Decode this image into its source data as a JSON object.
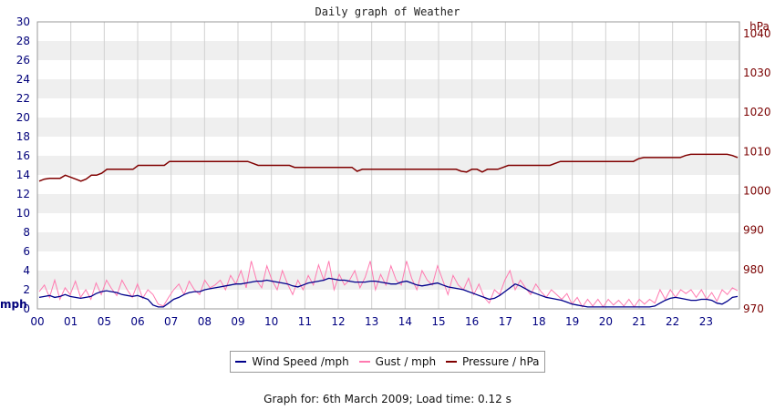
{
  "chart_data": {
    "type": "line",
    "title": "Daily graph of Weather",
    "left_axis": {
      "unit": "mph",
      "ylim": [
        0,
        30
      ],
      "ticks": [
        0,
        2,
        4,
        6,
        8,
        10,
        12,
        14,
        16,
        18,
        20,
        22,
        24,
        26,
        28,
        30
      ]
    },
    "right_axis": {
      "unit": "hPa",
      "ylim": [
        970,
        1043
      ],
      "ticks": [
        970,
        980,
        990,
        1000,
        1010,
        1020,
        1030,
        1040
      ]
    },
    "x_ticks": [
      "00",
      "01",
      "05",
      "06",
      "07",
      "08",
      "09",
      "10",
      "11",
      "12",
      "13",
      "14",
      "15",
      "16",
      "17",
      "18",
      "19",
      "20",
      "21",
      "22",
      "23"
    ],
    "grid": true,
    "legend_position": "bottom-center",
    "series": [
      {
        "name": "Wind Speed /mph",
        "color": "#00008b",
        "values": [
          1.2,
          1.3,
          1.4,
          1.2,
          1.3,
          1.5,
          1.3,
          1.2,
          1.1,
          1.2,
          1.3,
          1.6,
          1.8,
          1.9,
          1.8,
          1.7,
          1.5,
          1.4,
          1.3,
          1.4,
          1.2,
          1.0,
          0.4,
          0.2,
          0.2,
          0.6,
          1.0,
          1.2,
          1.5,
          1.7,
          1.8,
          1.8,
          2.0,
          2.1,
          2.2,
          2.3,
          2.4,
          2.5,
          2.6,
          2.6,
          2.7,
          2.8,
          2.9,
          2.9,
          3.0,
          2.9,
          2.8,
          2.7,
          2.6,
          2.4,
          2.3,
          2.5,
          2.7,
          2.8,
          2.9,
          3.0,
          3.2,
          3.1,
          3.0,
          3.0,
          2.9,
          2.8,
          2.8,
          2.8,
          2.9,
          2.9,
          2.8,
          2.7,
          2.6,
          2.6,
          2.8,
          2.9,
          2.7,
          2.5,
          2.4,
          2.5,
          2.6,
          2.7,
          2.5,
          2.3,
          2.2,
          2.1,
          2.0,
          1.8,
          1.6,
          1.4,
          1.2,
          1.0,
          1.1,
          1.4,
          1.8,
          2.2,
          2.6,
          2.4,
          2.1,
          1.8,
          1.6,
          1.4,
          1.2,
          1.1,
          1.0,
          0.9,
          0.7,
          0.5,
          0.4,
          0.3,
          0.2,
          0.2,
          0.2,
          0.2,
          0.2,
          0.2,
          0.2,
          0.2,
          0.2,
          0.2,
          0.2,
          0.2,
          0.2,
          0.3,
          0.6,
          0.9,
          1.1,
          1.2,
          1.1,
          1.0,
          0.9,
          0.9,
          1.0,
          1.0,
          0.9,
          0.6,
          0.5,
          0.8,
          1.2,
          1.3
        ]
      },
      {
        "name": "Gust / mph",
        "color": "#ff7ab0",
        "values": [
          1.8,
          2.5,
          1.2,
          3.0,
          1.0,
          2.2,
          1.5,
          2.9,
          1.2,
          2.0,
          1.0,
          2.7,
          1.5,
          3.0,
          2.1,
          1.4,
          3.0,
          2.0,
          1.2,
          2.6,
          1.1,
          2.0,
          1.5,
          0.5,
          0.3,
          1.2,
          2.0,
          2.6,
          1.5,
          2.9,
          2.0,
          1.5,
          3.0,
          2.2,
          2.5,
          3.0,
          2.0,
          3.5,
          2.6,
          4.0,
          2.2,
          5.0,
          3.0,
          2.2,
          4.5,
          3.0,
          2.0,
          4.0,
          2.6,
          1.5,
          3.0,
          2.0,
          3.5,
          2.5,
          4.6,
          3.0,
          5.0,
          2.0,
          3.6,
          2.5,
          3.0,
          4.0,
          2.2,
          3.3,
          5.0,
          2.0,
          3.6,
          2.5,
          4.5,
          3.0,
          2.5,
          5.0,
          3.2,
          2.0,
          4.0,
          3.0,
          2.5,
          4.5,
          3.0,
          1.5,
          3.5,
          2.5,
          2.0,
          3.2,
          1.5,
          2.6,
          1.2,
          0.6,
          2.0,
          1.5,
          3.0,
          4.0,
          2.0,
          3.0,
          2.2,
          1.5,
          2.6,
          1.8,
          1.2,
          2.0,
          1.5,
          1.0,
          1.6,
          0.5,
          1.2,
          0.2,
          1.0,
          0.3,
          1.0,
          0.2,
          1.0,
          0.4,
          0.9,
          0.3,
          1.0,
          0.2,
          1.0,
          0.5,
          1.0,
          0.6,
          2.0,
          1.0,
          2.0,
          1.2,
          2.0,
          1.6,
          2.0,
          1.2,
          2.0,
          1.0,
          1.7,
          0.8,
          2.0,
          1.5,
          2.2,
          1.9
        ]
      },
      {
        "name": "Pressure / hPa",
        "color": "#800000",
        "values": [
          1002.5,
          1003.0,
          1003.2,
          1003.2,
          1003.2,
          1004.0,
          1003.5,
          1003.0,
          1002.5,
          1003.0,
          1004.0,
          1004.0,
          1004.5,
          1005.5,
          1005.5,
          1005.5,
          1005.5,
          1005.5,
          1005.5,
          1006.5,
          1006.5,
          1006.5,
          1006.5,
          1006.5,
          1006.5,
          1007.5,
          1007.5,
          1007.5,
          1007.5,
          1007.5,
          1007.5,
          1007.5,
          1007.5,
          1007.5,
          1007.5,
          1007.5,
          1007.5,
          1007.5,
          1007.5,
          1007.5,
          1007.5,
          1007.0,
          1006.5,
          1006.5,
          1006.5,
          1006.5,
          1006.5,
          1006.5,
          1006.5,
          1006.0,
          1006.0,
          1006.0,
          1006.0,
          1006.0,
          1006.0,
          1006.0,
          1006.0,
          1006.0,
          1006.0,
          1006.0,
          1006.0,
          1005.0,
          1005.5,
          1005.5,
          1005.5,
          1005.5,
          1005.5,
          1005.5,
          1005.5,
          1005.5,
          1005.5,
          1005.5,
          1005.5,
          1005.5,
          1005.5,
          1005.5,
          1005.5,
          1005.5,
          1005.5,
          1005.5,
          1005.5,
          1005.0,
          1004.8,
          1005.5,
          1005.5,
          1004.8,
          1005.5,
          1005.5,
          1005.5,
          1006.0,
          1006.5,
          1006.5,
          1006.5,
          1006.5,
          1006.5,
          1006.5,
          1006.5,
          1006.5,
          1006.5,
          1007.0,
          1007.5,
          1007.5,
          1007.5,
          1007.5,
          1007.5,
          1007.5,
          1007.5,
          1007.5,
          1007.5,
          1007.5,
          1007.5,
          1007.5,
          1007.5,
          1007.5,
          1007.5,
          1008.2,
          1008.5,
          1008.5,
          1008.5,
          1008.5,
          1008.5,
          1008.5,
          1008.5,
          1008.5,
          1009.0,
          1009.3,
          1009.3,
          1009.3,
          1009.3,
          1009.3,
          1009.3,
          1009.3,
          1009.3,
          1009.0,
          1008.5
        ]
      }
    ]
  },
  "footer": {
    "text": "Graph for: 6th March 2009; Load time: 0.12 s"
  }
}
